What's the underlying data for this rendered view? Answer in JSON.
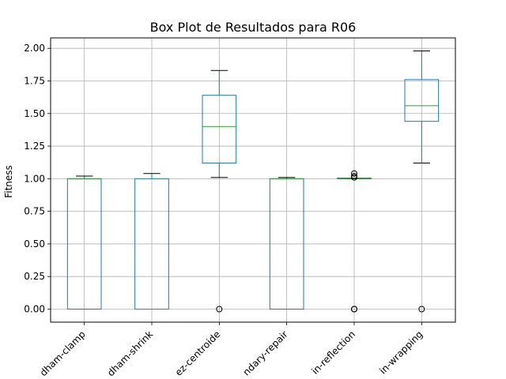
{
  "chart_data": {
    "type": "box",
    "title": "Box Plot de Resultados para R06",
    "xlabel": "",
    "ylabel": "Fitness",
    "ylim": [
      -0.1,
      2.08
    ],
    "yticks": [
      0.0,
      0.25,
      0.5,
      0.75,
      1.0,
      1.25,
      1.5,
      1.75,
      2.0
    ],
    "ytick_labels": [
      "0.00",
      "0.25",
      "0.50",
      "0.75",
      "1.00",
      "1.25",
      "1.50",
      "1.75",
      "2.00"
    ],
    "grid": true,
    "categories": [
      "dham-clamp",
      "dham-shrink",
      "ez-centroide",
      "ndary-repair",
      "in-reflection",
      "in-wrapping"
    ],
    "boxes": [
      {
        "whislo": 0.0,
        "q1": 0.0,
        "med": 1.0,
        "q3": 1.0,
        "whishi": 1.02,
        "fliers": []
      },
      {
        "whislo": 0.0,
        "q1": 0.0,
        "med": 0.0,
        "q3": 1.0,
        "whishi": 1.04,
        "fliers": []
      },
      {
        "whislo": 1.01,
        "q1": 1.12,
        "med": 1.4,
        "q3": 1.64,
        "whishi": 1.83,
        "fliers": [
          0.0
        ]
      },
      {
        "whislo": 0.0,
        "q1": 0.0,
        "med": 1.0,
        "q3": 1.0,
        "whishi": 1.01,
        "fliers": []
      },
      {
        "whislo": 1.0,
        "q1": 1.0,
        "med": 1.0,
        "q3": 1.005,
        "whishi": 1.005,
        "fliers": [
          0.0,
          0.0,
          1.01,
          1.02,
          1.04
        ]
      },
      {
        "whislo": 1.12,
        "q1": 1.44,
        "med": 1.56,
        "q3": 1.76,
        "whishi": 1.98,
        "fliers": [
          0.0
        ]
      }
    ],
    "colors": {
      "box": "#1f77b4",
      "median": "#2ca02c",
      "whisker": "#1f77b4",
      "cap": "#000000",
      "grid": "#b0b0b0",
      "flier": "#000000"
    }
  }
}
